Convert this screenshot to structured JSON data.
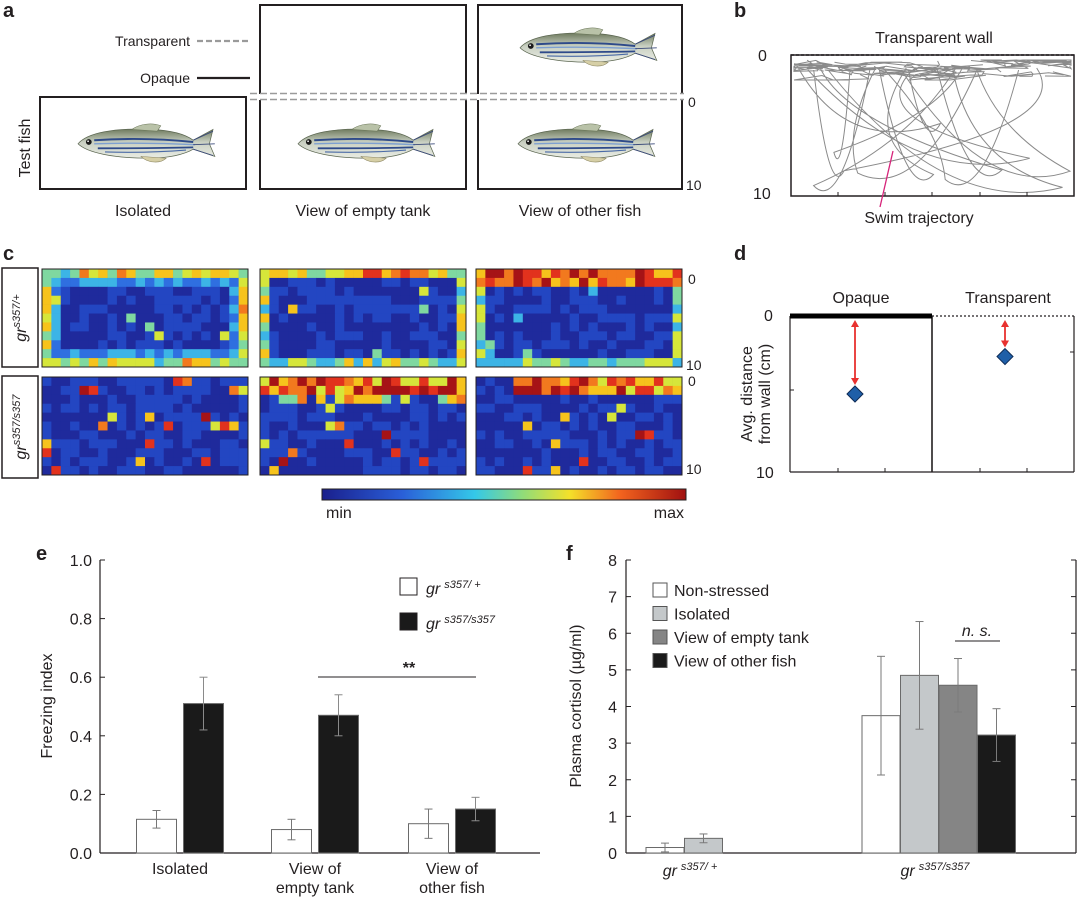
{
  "panel_labels": {
    "a": "a",
    "b": "b",
    "c": "c",
    "d": "d",
    "e": "e",
    "f": "f"
  },
  "panel_a": {
    "legend_transparent": "Transparent",
    "legend_opaque": "Opaque",
    "ylabel": "Test fish",
    "conditions": [
      "Isolated",
      "View of empty tank",
      "View of other fish"
    ],
    "tick_top": "0",
    "tick_bottom": "10"
  },
  "panel_b": {
    "title": "Transparent wall",
    "tick_top": "0",
    "tick_bottom": "10",
    "annotation": "Swim trajectory",
    "annotation_color": "#d6247a"
  },
  "panel_c": {
    "genotypes": [
      {
        "base": "gr",
        "sup": "s357/+"
      },
      {
        "base": "gr",
        "sup": "s357/s357"
      }
    ],
    "tick_top": "0",
    "tick_bottom": "10",
    "colorbar_min": "min",
    "colorbar_max": "max"
  },
  "panel_d": {
    "col_labels": [
      "Opaque",
      "Transparent"
    ],
    "ylabel_line1": "Avg. distance",
    "ylabel_line2": "from wall (cm)",
    "tick_top": "0",
    "tick_bottom": "10",
    "marker_color": "#1f5fa8",
    "arrow_color": "#e8312f"
  },
  "chart_data": [
    {
      "type": "scatter",
      "title": "",
      "xlabel": "",
      "ylabel": "Avg. distance from wall (cm)",
      "categories": [
        "Opaque",
        "Transparent"
      ],
      "values": [
        5.0,
        2.6
      ],
      "ylim": [
        10,
        0
      ],
      "yticks": [
        "0",
        "10"
      ]
    },
    {
      "type": "bar",
      "title": "",
      "xlabel": "",
      "ylabel": "Freezing index",
      "categories": [
        "Isolated",
        "View of empty tank",
        "View of other fish"
      ],
      "category_lines": [
        [
          "Isolated"
        ],
        [
          "View of",
          "empty tank"
        ],
        [
          "View of",
          "other fish"
        ]
      ],
      "series": [
        {
          "name": "gr s357/+",
          "base": "gr",
          "sup": "s357/ +",
          "fill": "#ffffff",
          "values": [
            0.115,
            0.08,
            0.1
          ],
          "errors": [
            0.03,
            0.035,
            0.05
          ]
        },
        {
          "name": "gr s357/s357",
          "base": "gr",
          "sup": "s357/s357",
          "fill": "#1a1a1a",
          "values": [
            0.51,
            0.47,
            0.15
          ],
          "errors": [
            0.09,
            0.07,
            0.04
          ]
        }
      ],
      "ylim": [
        0,
        1.0
      ],
      "yticks": [
        "0.0",
        "0.2",
        "0.4",
        "0.6",
        "0.8",
        "1.0"
      ],
      "significance": "**"
    },
    {
      "type": "bar",
      "title": "",
      "xlabel": "",
      "ylabel": "Plasma cortisol (µg/ml)",
      "categories": [
        "gr s357/+",
        "gr s357/s357"
      ],
      "category_labels": [
        {
          "base": "gr",
          "sup": "s357/ +"
        },
        {
          "base": "gr",
          "sup": "s357/s357"
        }
      ],
      "series": [
        {
          "name": "Non-stressed",
          "fill": "#ffffff",
          "values": [
            0.15,
            3.75
          ],
          "errors": [
            0.12,
            1.62
          ]
        },
        {
          "name": "Isolated",
          "fill": "#c4c8ca",
          "values": [
            0.4,
            4.85
          ],
          "errors": [
            0.12,
            1.47
          ]
        },
        {
          "name": "View of empty tank",
          "fill": "#858585",
          "values": [
            null,
            4.58
          ],
          "errors": [
            null,
            0.73
          ]
        },
        {
          "name": "View of other fish",
          "fill": "#1a1a1a",
          "values": [
            null,
            3.22
          ],
          "errors": [
            null,
            0.72
          ]
        }
      ],
      "ylim": [
        0,
        8
      ],
      "yticks": [
        "0",
        "1",
        "2",
        "3",
        "4",
        "5",
        "6",
        "7",
        "8"
      ],
      "significance": "n. s."
    }
  ]
}
